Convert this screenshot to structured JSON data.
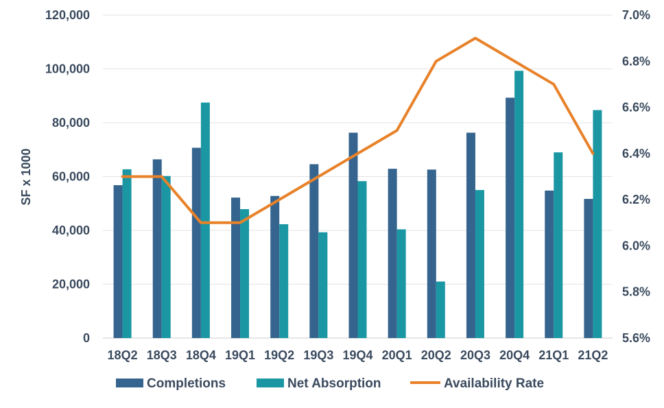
{
  "chart_data": {
    "type": "bar",
    "title": "",
    "categories": [
      "18Q2",
      "18Q3",
      "18Q4",
      "19Q1",
      "19Q2",
      "19Q3",
      "19Q4",
      "20Q1",
      "20Q2",
      "20Q3",
      "20Q4",
      "21Q1",
      "21Q2"
    ],
    "series": [
      {
        "name": "Completions",
        "type": "bar",
        "axis": "left",
        "color": "#35648e",
        "values": [
          56800,
          66400,
          70700,
          52200,
          52800,
          64600,
          76300,
          62900,
          62600,
          76300,
          89300,
          54800,
          51700
        ]
      },
      {
        "name": "Net Absorption",
        "type": "bar",
        "axis": "left",
        "color": "#1a97a3",
        "values": [
          62700,
          60200,
          87500,
          47900,
          42300,
          39300,
          58300,
          40400,
          21000,
          55000,
          99300,
          69000,
          84700
        ]
      },
      {
        "name": "Availability Rate",
        "type": "line",
        "axis": "right",
        "color": "#e8822a",
        "values": [
          6.3,
          6.3,
          6.1,
          6.1,
          6.2,
          6.3,
          6.4,
          6.5,
          6.8,
          6.9,
          6.8,
          6.7,
          6.4
        ]
      }
    ],
    "ylabel": "SF x 1000",
    "ylim": [
      0,
      120000
    ],
    "yticks": [
      "0",
      "20,000",
      "40,000",
      "60,000",
      "80,000",
      "100,000",
      "120,000"
    ],
    "y2lim": [
      5.6,
      7.0
    ],
    "y2ticks": [
      "5.6%",
      "5.8%",
      "6.0%",
      "6.2%",
      "6.4%",
      "6.6%",
      "6.8%",
      "7.0%"
    ],
    "grid": true,
    "legend_position": "bottom"
  }
}
